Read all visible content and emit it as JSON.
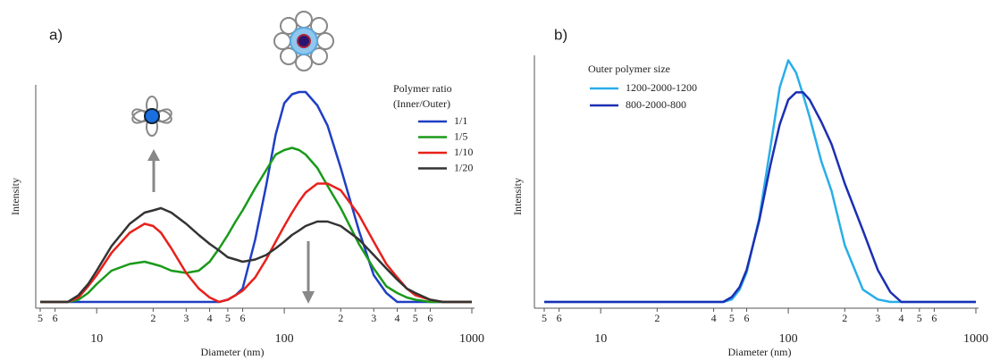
{
  "chart_data": [
    {
      "type": "line",
      "panel_label": "a)",
      "x_label": "Diameter (nm)",
      "y_label": "Intensity",
      "log_x": true,
      "grid": false,
      "legend_title": "Polymer ratio",
      "legend_subtitle": "(Inner/Outer)",
      "xlim": [
        5,
        1000
      ],
      "ylim": [
        0,
        100
      ],
      "xticks": [
        5,
        6,
        10,
        {
          "value": 20,
          "label": "2"
        },
        {
          "value": 30,
          "label": "3"
        },
        {
          "value": 40,
          "label": "4"
        },
        {
          "value": 50,
          "label": "5"
        },
        {
          "value": 60,
          "label": "6"
        },
        100,
        {
          "value": 200,
          "label": "2"
        },
        {
          "value": 300,
          "label": "3"
        },
        {
          "value": 400,
          "label": "4"
        },
        {
          "value": 500,
          "label": "5"
        },
        {
          "value": 600,
          "label": "6"
        },
        1000
      ],
      "x": [
        5,
        6,
        7,
        8,
        9,
        10,
        12,
        15,
        18,
        20,
        22,
        25,
        30,
        35,
        40,
        45,
        50,
        55,
        60,
        70,
        80,
        90,
        100,
        110,
        120,
        130,
        150,
        170,
        200,
        250,
        300,
        350,
        400,
        450,
        500,
        600,
        700,
        800,
        1000
      ],
      "series": [
        {
          "name": "1/1",
          "color": "#1f3fc4",
          "values": [
            0,
            0,
            0,
            0,
            0,
            0,
            0,
            0,
            0,
            0,
            0,
            0,
            0,
            0,
            0,
            0,
            1,
            3,
            6,
            28,
            52,
            75,
            89,
            93,
            94,
            94,
            88,
            79,
            60,
            32,
            12,
            4,
            0,
            0,
            0,
            0,
            0,
            0,
            0
          ]
        },
        {
          "name": "1/5",
          "color": "#1a9a1a",
          "values": [
            0,
            0,
            0,
            1,
            4,
            8,
            14,
            17,
            18,
            17,
            16,
            14,
            13,
            14,
            18,
            24,
            30,
            36,
            41,
            51,
            59,
            66,
            68,
            69,
            68,
            66,
            60,
            52,
            42,
            26,
            15,
            7,
            4,
            2,
            1,
            0,
            0,
            0,
            0
          ]
        },
        {
          "name": "1/10",
          "color": "#e8211b",
          "values": [
            0,
            0,
            0,
            2,
            7,
            12,
            22,
            31,
            35,
            34,
            31,
            24,
            13,
            6,
            2,
            0,
            1,
            3,
            5,
            11,
            19,
            27,
            34,
            40,
            45,
            49,
            53,
            53,
            50,
            39,
            27,
            17,
            11,
            6,
            3,
            1,
            0,
            0,
            0
          ]
        },
        {
          "name": "1/20",
          "color": "#333333",
          "values": [
            0,
            0,
            0,
            3,
            8,
            14,
            25,
            35,
            40,
            41,
            42,
            40,
            35,
            30,
            26,
            23,
            20,
            19,
            18,
            19,
            21,
            24,
            27,
            30,
            32,
            34,
            36,
            36,
            34,
            28,
            21,
            15,
            10,
            6,
            4,
            1,
            0,
            0,
            0
          ]
        }
      ]
    },
    {
      "type": "line",
      "panel_label": "b)",
      "x_label": "Diameter (nm)",
      "y_label": "Intensity",
      "log_x": true,
      "grid": false,
      "legend_title": "Outer polymer size",
      "xlim": [
        5,
        1000
      ],
      "ylim": [
        0,
        100
      ],
      "xticks": [
        5,
        6,
        10,
        {
          "value": 20,
          "label": "2"
        },
        {
          "value": 40,
          "label": "4"
        },
        {
          "value": 50,
          "label": "5"
        },
        {
          "value": 60,
          "label": "6"
        },
        100,
        {
          "value": 200,
          "label": "2"
        },
        {
          "value": 300,
          "label": "3"
        },
        {
          "value": 400,
          "label": "4"
        },
        {
          "value": 500,
          "label": "5"
        },
        {
          "value": 600,
          "label": "6"
        },
        1000
      ],
      "x": [
        5,
        6,
        7,
        8,
        9,
        10,
        15,
        20,
        30,
        40,
        45,
        50,
        55,
        60,
        70,
        80,
        90,
        100,
        110,
        120,
        130,
        150,
        170,
        200,
        250,
        300,
        350,
        400,
        500,
        600,
        800,
        1000
      ],
      "series": [
        {
          "name": "1200-2000-1200",
          "color": "#29aee8",
          "values": [
            0,
            0,
            0,
            0,
            0,
            0,
            0,
            0,
            0,
            0,
            0,
            1,
            5,
            12,
            34,
            62,
            87,
            98,
            93,
            84,
            75,
            57,
            45,
            23,
            5,
            1,
            0,
            0,
            0,
            0,
            0,
            0
          ]
        },
        {
          "name": "800-2000-800",
          "color": "#1b2fb3",
          "values": [
            0,
            0,
            0,
            0,
            0,
            0,
            0,
            0,
            0,
            0,
            0,
            2,
            6,
            13,
            33,
            55,
            72,
            82,
            85,
            85,
            82,
            73,
            64,
            48,
            29,
            13,
            4,
            0,
            0,
            0,
            0,
            0
          ]
        }
      ]
    }
  ]
}
